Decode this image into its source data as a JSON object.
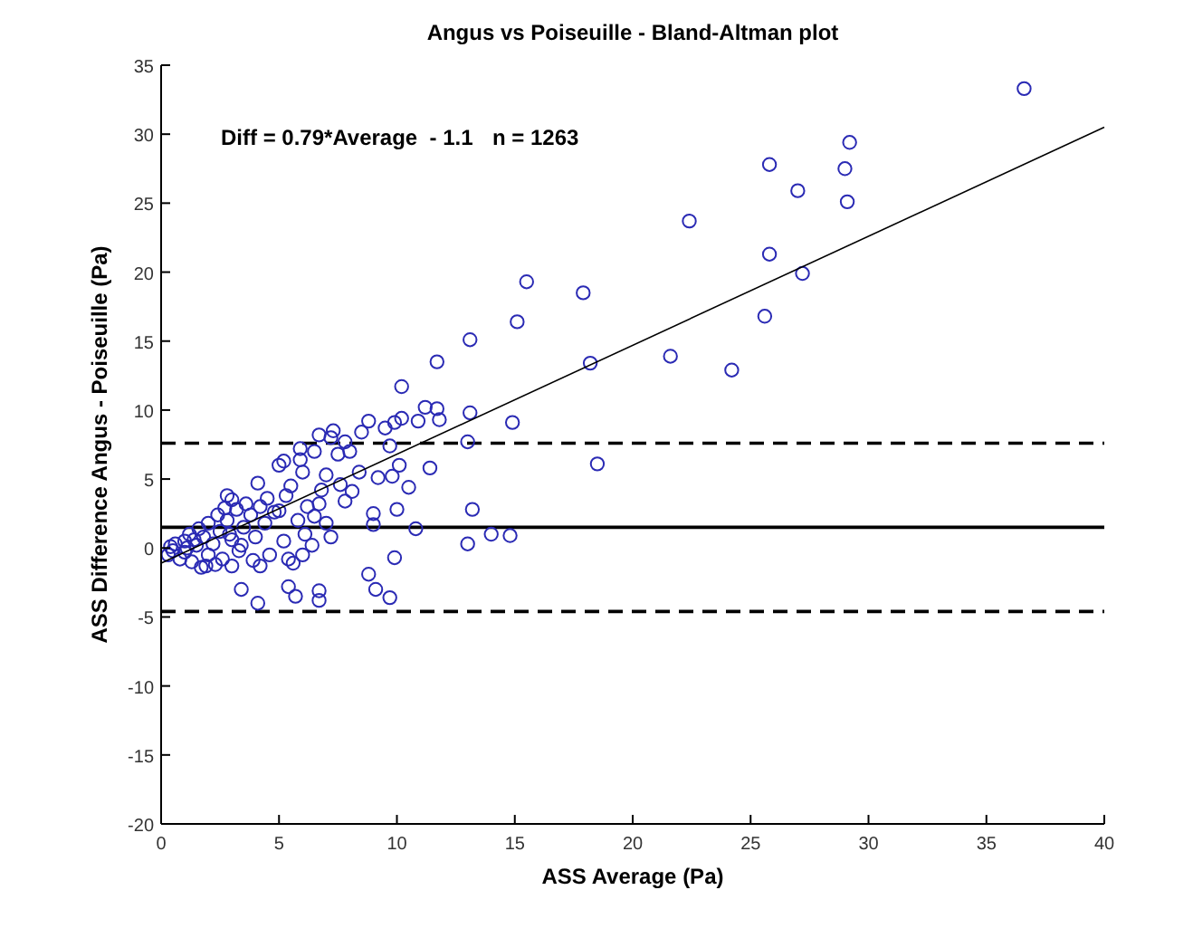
{
  "chart_data": {
    "type": "scatter",
    "title": "Angus vs Poiseuille - Bland-Altman plot",
    "xlabel": "ASS Average (Pa)",
    "ylabel": "ASS Difference Angus - Poiseuille (Pa)",
    "annotations": [
      "Diff = 0.79*Average  - 1.1",
      "n = 1263"
    ],
    "xlim": [
      0,
      40
    ],
    "xticks": [
      0,
      5,
      10,
      15,
      20,
      25,
      30,
      35,
      40
    ],
    "ylim": [
      -20,
      35
    ],
    "yticks": [
      -20,
      -15,
      -10,
      -5,
      0,
      5,
      10,
      15,
      20,
      25,
      30,
      35
    ],
    "grid": false,
    "marker": "circle",
    "series": [
      {
        "color": "#2a2ab4",
        "x": [
          36.6,
          29.2,
          25.8,
          29.0,
          27.0,
          29.1,
          22.4,
          25.8,
          27.2,
          17.9,
          25.6,
          18.2,
          21.6,
          24.2,
          18.5,
          15.5,
          15.1,
          13.1,
          11.7,
          10.2,
          11.2,
          11.7,
          11.8,
          13.1,
          14.9,
          10.9,
          10.2,
          9.9,
          9.5,
          8.8,
          8.5,
          7.3,
          6.7,
          5.9,
          5.2,
          7.8,
          9.7,
          13.0,
          11.4,
          10.5,
          10.1,
          9.2,
          9.8,
          8.1,
          7.8,
          6.7,
          7.2,
          9.0,
          9.0,
          10.0,
          10.8,
          13.2,
          13.0,
          14.0,
          14.8,
          9.9,
          8.8,
          9.1,
          9.7,
          6.7,
          6.7,
          5.7,
          5.4,
          4.1,
          3.4,
          5.6,
          4.2,
          3.0,
          1.9,
          6.1,
          6.5,
          5.0,
          4.1,
          5.0,
          5.9,
          5.3,
          7.0,
          2.8,
          0.3,
          0.5,
          0.6,
          0.8,
          1.0,
          1.0,
          1.2,
          1.3,
          1.5,
          1.6,
          1.8,
          2.0,
          2.0,
          2.2,
          2.4,
          2.5,
          2.6,
          2.8,
          3.0,
          3.0,
          3.2,
          3.3,
          3.5,
          3.6,
          3.8,
          4.0,
          4.2,
          4.4,
          4.6,
          4.8,
          0.4,
          1.4,
          2.3,
          3.9,
          1.7,
          2.9,
          4.5,
          3.4,
          2.7,
          1.1,
          5.2,
          5.5,
          5.8,
          6.0,
          6.2,
          6.4,
          6.8,
          7.0,
          7.5,
          7.6,
          6.5,
          8.0,
          7.2,
          8.4,
          5.4,
          6.0
        ],
        "values": [
          33.3,
          29.4,
          27.8,
          27.5,
          25.9,
          25.1,
          23.7,
          21.3,
          19.9,
          18.5,
          16.8,
          13.4,
          13.9,
          12.9,
          6.1,
          19.3,
          16.4,
          15.1,
          13.5,
          11.7,
          10.2,
          10.1,
          9.3,
          9.8,
          9.1,
          9.2,
          9.4,
          9.1,
          8.7,
          9.2,
          8.4,
          8.5,
          8.2,
          7.2,
          6.3,
          7.7,
          7.4,
          7.7,
          5.8,
          4.4,
          6.0,
          5.1,
          5.2,
          4.1,
          3.4,
          3.2,
          0.8,
          2.5,
          1.7,
          2.8,
          1.4,
          2.8,
          0.3,
          1.0,
          0.9,
          -0.7,
          -1.9,
          -3.0,
          -3.6,
          -3.1,
          -3.8,
          -3.5,
          -2.8,
          -4.0,
          -3.0,
          -1.1,
          -1.3,
          -1.3,
          -1.3,
          1.0,
          2.3,
          2.7,
          4.7,
          6.0,
          6.4,
          3.8,
          5.3,
          3.8,
          -0.5,
          -0.2,
          0.3,
          -0.8,
          0.5,
          -0.3,
          1.0,
          -1.0,
          0.2,
          1.4,
          0.8,
          -0.5,
          1.8,
          0.3,
          2.4,
          1.2,
          -0.8,
          2.0,
          3.5,
          0.6,
          2.8,
          -0.2,
          1.5,
          3.2,
          2.4,
          0.8,
          3.0,
          1.8,
          -0.5,
          2.6,
          0.1,
          0.6,
          -1.2,
          -0.9,
          -1.4,
          1.0,
          3.6,
          0.2,
          2.9,
          0.0,
          0.5,
          4.5,
          2.0,
          5.5,
          3.0,
          0.2,
          4.2,
          1.8,
          6.8,
          4.6,
          7.0,
          7.0,
          8.0,
          5.5,
          -0.8,
          -0.5
        ]
      },
      {
        "type": "line",
        "marker": "none",
        "color": "#000000",
        "line_style": "solid",
        "x": [
          0,
          40
        ],
        "values": [
          -1.1,
          30.5
        ]
      }
    ],
    "ref_lines": [
      {
        "axis": "y",
        "value": 1.5,
        "color": "#000000",
        "line_style": "solid"
      },
      {
        "axis": "y",
        "value": 7.6,
        "color": "#000000",
        "line_style": "dashed"
      },
      {
        "axis": "y",
        "value": -4.6,
        "color": "#000000",
        "line_style": "dashed"
      }
    ]
  }
}
